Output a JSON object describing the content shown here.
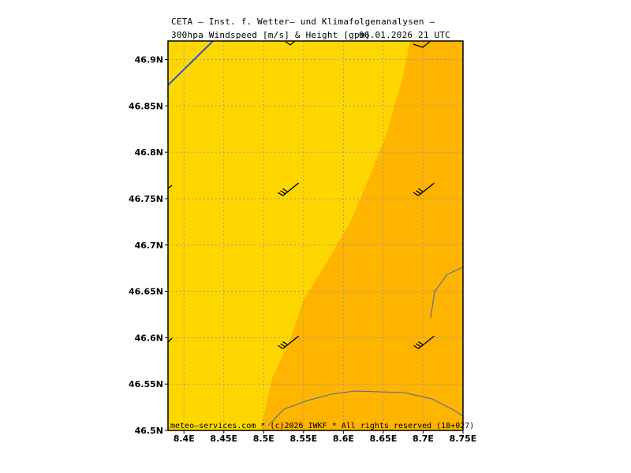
{
  "title": {
    "line1": "CETA — Inst. f. Wetter— und Klimafolgenanalysen —",
    "line2": "300hpa Windspeed [m/s] & Height [gpm]",
    "datetime": "06.01.2026 21 UTC"
  },
  "footer": "meteo—services.com * (c)2026 IWKF * All rights reserved (18+027)",
  "lat_labels": [
    "46.9N",
    "46.85N",
    "46.8N",
    "46.75N",
    "46.7N",
    "46.65N",
    "46.6N",
    "46.55N",
    "46.5N"
  ],
  "lon_labels": [
    "8.4E",
    "8.45E",
    "8.5E",
    "8.55E",
    "8.6E",
    "8.65E",
    "8.7E",
    "8.75E"
  ],
  "colors": {
    "wind_light": "#FFD700",
    "wind_strong": "#FFB400",
    "height_contour": "#3355BB",
    "grid": "#999999"
  },
  "map_data": {
    "lat_range": [
      46.5,
      46.92
    ],
    "lon_range": [
      8.38,
      8.75
    ],
    "wind_barbs": [
      {
        "lat": 46.76,
        "lon": 8.53
      },
      {
        "lat": 46.76,
        "lon": 8.7
      },
      {
        "lat": 46.595,
        "lon": 8.53
      },
      {
        "lat": 46.595,
        "lon": 8.7
      }
    ]
  }
}
